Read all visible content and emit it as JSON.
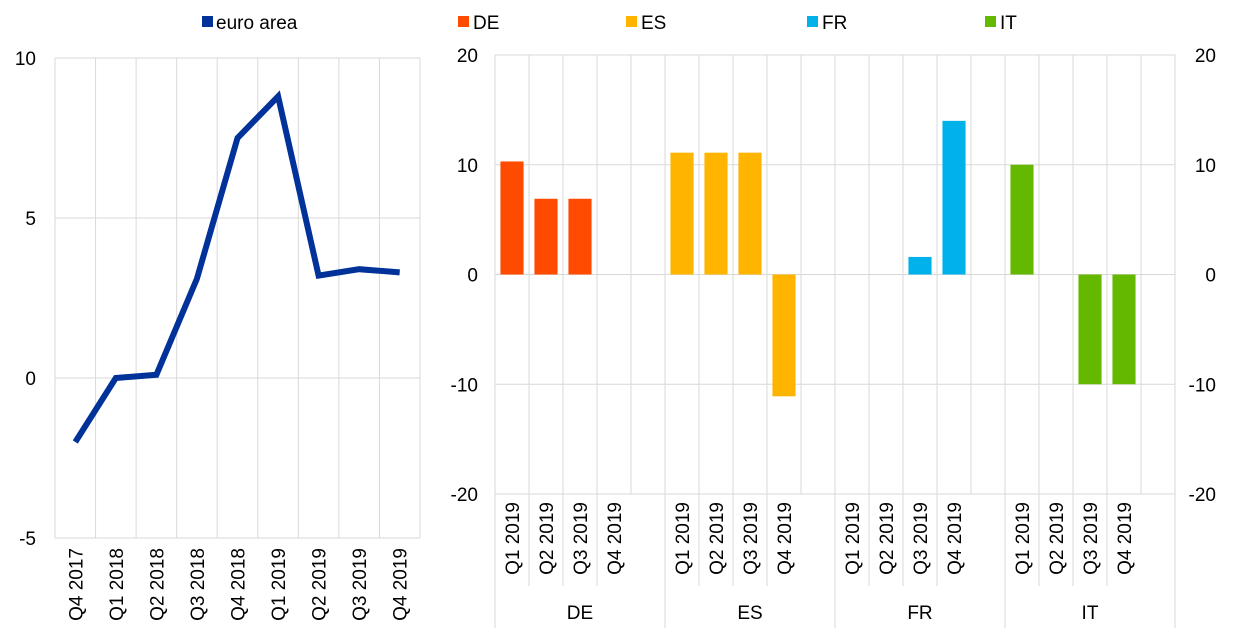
{
  "chart_data": [
    {
      "type": "line",
      "legend": [
        "euro area"
      ],
      "legend_position": "top",
      "x": [
        "Q4 2017",
        "Q1 2018",
        "Q2 2018",
        "Q3 2018",
        "Q4 2018",
        "Q1 2019",
        "Q2 2019",
        "Q3 2019",
        "Q4 2019"
      ],
      "series": [
        {
          "name": "euro area",
          "values": [
            -2.0,
            0.0,
            0.1,
            3.1,
            7.5,
            8.8,
            3.2,
            3.4,
            3.3
          ],
          "color": "#003299"
        }
      ],
      "ylim": [
        -5,
        10
      ],
      "yticks": [
        "-5",
        "0",
        "5",
        "10"
      ],
      "grid": true
    },
    {
      "type": "bar",
      "legend_position": "top",
      "groups": [
        "DE",
        "ES",
        "FR",
        "IT"
      ],
      "quarters": [
        "Q1 2019",
        "Q2 2019",
        "Q3 2019",
        "Q4 2019"
      ],
      "series": [
        {
          "name": "DE",
          "values": [
            10.3,
            6.9,
            6.9,
            0
          ],
          "color": "#FF4B00"
        },
        {
          "name": "ES",
          "values": [
            11.1,
            11.1,
            11.1,
            -11.1
          ],
          "color": "#FFB400"
        },
        {
          "name": "FR",
          "values": [
            0,
            0,
            1.6,
            14.0
          ],
          "color": "#00B1EA"
        },
        {
          "name": "IT",
          "values": [
            10.0,
            0,
            -10.0,
            -10.0
          ],
          "color": "#65B800"
        }
      ],
      "ylim": [
        -20,
        20
      ],
      "yticks": [
        "-20",
        "-10",
        "0",
        "10",
        "20"
      ],
      "grid": true
    }
  ]
}
